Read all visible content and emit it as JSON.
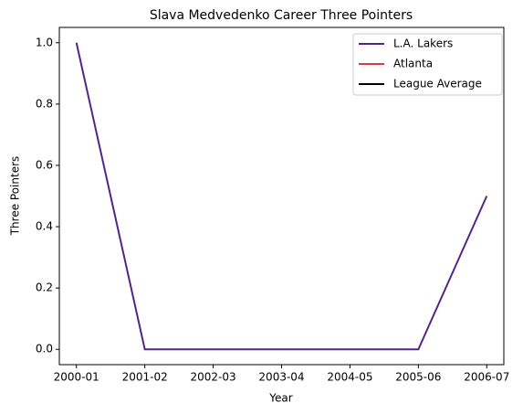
{
  "chart_data": {
    "type": "line",
    "title": "Slava Medvedenko Career Three Pointers",
    "xlabel": "Year",
    "ylabel": "Three Pointers",
    "categories": [
      "2000-01",
      "2001-02",
      "2002-03",
      "2003-04",
      "2004-05",
      "2005-06",
      "2006-07"
    ],
    "series": [
      {
        "name": "L.A. Lakers",
        "color": "#552583",
        "values": [
          1,
          0,
          0,
          0,
          0,
          0,
          0.5
        ]
      },
      {
        "name": "Atlanta",
        "color": "#e03a3e",
        "values": [
          null,
          null,
          null,
          null,
          null,
          null,
          null
        ]
      },
      {
        "name": "League Average",
        "color": "#000000",
        "values": [
          null,
          null,
          null,
          null,
          null,
          null,
          null
        ]
      }
    ],
    "ylim": [
      -0.05,
      1.05
    ],
    "yticks": [
      {
        "value": 0,
        "label": "0.0"
      },
      {
        "value": 0.2,
        "label": "0.2"
      },
      {
        "value": 0.4,
        "label": "0.4"
      },
      {
        "value": 0.6,
        "label": "0.6"
      },
      {
        "value": 0.8,
        "label": "0.8"
      },
      {
        "value": 1,
        "label": "1.0"
      }
    ],
    "legend": "upper right",
    "grid": false
  }
}
